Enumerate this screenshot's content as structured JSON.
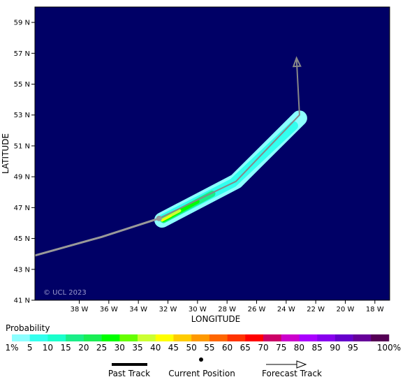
{
  "map": {
    "xlabel": "LONGITUDE",
    "ylabel": "LATITUDE",
    "lon_range": [
      -41,
      -17
    ],
    "lat_range": [
      41,
      60
    ],
    "lon_ticks": [
      {
        "value": -38,
        "label": "38 W"
      },
      {
        "value": -36,
        "label": "36 W"
      },
      {
        "value": -34,
        "label": "34 W"
      },
      {
        "value": -32,
        "label": "32 W"
      },
      {
        "value": -30,
        "label": "30 W"
      },
      {
        "value": -28,
        "label": "28 W"
      },
      {
        "value": -26,
        "label": "26 W"
      },
      {
        "value": -24,
        "label": "24 W"
      },
      {
        "value": -22,
        "label": "22 W"
      },
      {
        "value": -20,
        "label": "20 W"
      },
      {
        "value": -18,
        "label": "18 W"
      }
    ],
    "lat_ticks": [
      {
        "value": 41,
        "label": "41 N"
      },
      {
        "value": 43,
        "label": "43 N"
      },
      {
        "value": 45,
        "label": "45 N"
      },
      {
        "value": 47,
        "label": "47 N"
      },
      {
        "value": 49,
        "label": "49 N"
      },
      {
        "value": 51,
        "label": "51 N"
      },
      {
        "value": 53,
        "label": "53 N"
      },
      {
        "value": 55,
        "label": "55 N"
      },
      {
        "value": 57,
        "label": "57 N"
      },
      {
        "value": 59,
        "label": "59 N"
      }
    ],
    "background_color": "#000066",
    "copyright": "© UCL 2023",
    "past_track": [
      [
        -41,
        43.9
      ],
      [
        -36.5,
        45.1
      ],
      [
        -32.6,
        46.3
      ]
    ],
    "current_position": [
      -32.6,
      46.3
    ],
    "forecast_track": [
      [
        -32.6,
        46.3
      ],
      [
        -27.4,
        48.7
      ],
      [
        -23.1,
        53.0
      ],
      [
        -23.3,
        56.7
      ]
    ]
  },
  "probability": {
    "title": "Probability",
    "levels": [
      {
        "label": "1%",
        "color": "#8cffff"
      },
      {
        "label": "5",
        "color": "#33ffee"
      },
      {
        "label": "10",
        "color": "#1affcc"
      },
      {
        "label": "15",
        "color": "#1aee88"
      },
      {
        "label": "20",
        "color": "#1aee55"
      },
      {
        "label": "25",
        "color": "#00ff00"
      },
      {
        "label": "30",
        "color": "#66ff00"
      },
      {
        "label": "35",
        "color": "#ccff33"
      },
      {
        "label": "40",
        "color": "#ffff00"
      },
      {
        "label": "45",
        "color": "#ffcc00"
      },
      {
        "label": "50",
        "color": "#ff9900"
      },
      {
        "label": "55",
        "color": "#ff6600"
      },
      {
        "label": "60",
        "color": "#ff3300"
      },
      {
        "label": "65",
        "color": "#ff0000"
      },
      {
        "label": "70",
        "color": "#cc0066"
      },
      {
        "label": "75",
        "color": "#cc00cc"
      },
      {
        "label": "80",
        "color": "#aa00ff"
      },
      {
        "label": "85",
        "color": "#8800ee"
      },
      {
        "label": "90",
        "color": "#6600cc"
      },
      {
        "label": "95",
        "color": "#660099"
      },
      {
        "label": "100%",
        "color": "#550055"
      }
    ]
  },
  "legend": {
    "past_track": "Past Track",
    "current_position": "Current Position",
    "forecast_track": "Forecast Track"
  }
}
